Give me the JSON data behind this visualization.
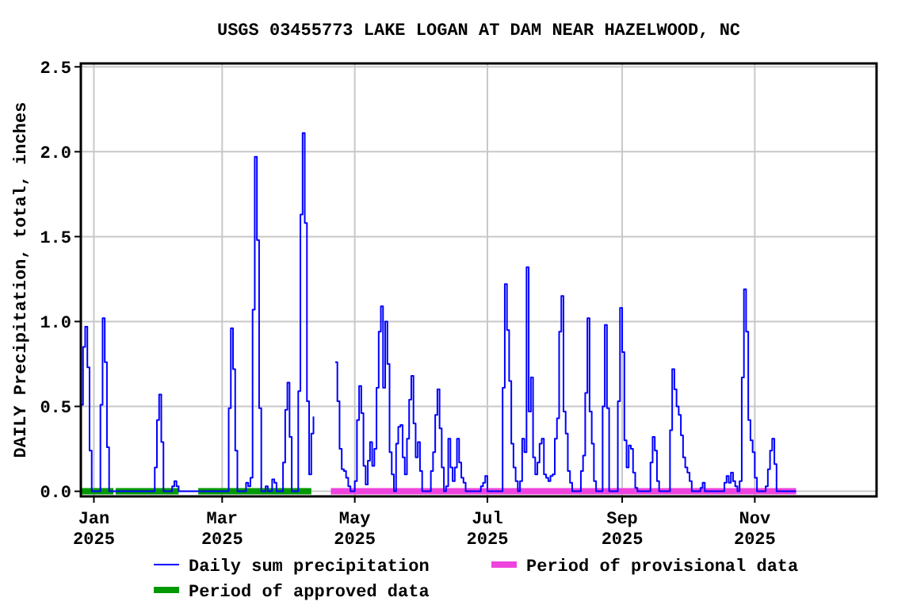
{
  "chart_data": {
    "type": "step",
    "title": "USGS 03455773 LAKE LOGAN AT DAM NEAR HAZELWOOD, NC",
    "ylabel": "DAILY Precipitation, total, inches",
    "xlim": [
      "2024-12-26",
      "2025-12-27"
    ],
    "ylim": [
      -0.03,
      2.52
    ],
    "xticks": [
      {
        "value": "2025-01-01",
        "label": "Jan 2025"
      },
      {
        "value": "2025-03-01",
        "label": "Mar 2025"
      },
      {
        "value": "2025-05-01",
        "label": "May 2025"
      },
      {
        "value": "2025-07-01",
        "label": "Jul 2025"
      },
      {
        "value": "2025-09-01",
        "label": "Sep 2025"
      },
      {
        "value": "2025-11-01",
        "label": "Nov 2025"
      }
    ],
    "yticks": [
      {
        "value": 0,
        "label": "0.0"
      },
      {
        "value": 0.5,
        "label": "0.5"
      },
      {
        "value": 1,
        "label": "1.0"
      },
      {
        "value": 1.5,
        "label": "1.5"
      },
      {
        "value": 2,
        "label": "2.0"
      },
      {
        "value": 2.5,
        "label": "2.5"
      }
    ],
    "grid": true,
    "legend": "bottom",
    "series": [
      {
        "name": "Daily sum precipitation",
        "color": "#0000ff",
        "x": [
          "2024-12-26",
          "2024-12-27",
          "2024-12-28",
          "2024-12-29",
          "2024-12-30",
          "2024-12-31",
          "2025-01-04",
          "2025-01-05",
          "2025-01-06",
          "2025-01-07",
          "2025-01-08",
          "2025-01-29",
          "2025-01-30",
          "2025-01-31",
          "2025-02-01",
          "2025-02-02",
          "2025-02-06",
          "2025-02-07",
          "2025-02-08",
          "2025-02-09",
          "2025-03-04",
          "2025-03-05",
          "2025-03-06",
          "2025-03-07",
          "2025-03-08",
          "2025-03-12",
          "2025-03-13",
          "2025-03-14",
          "2025-03-15",
          "2025-03-16",
          "2025-03-17",
          "2025-03-18",
          "2025-03-19",
          "2025-03-21",
          "2025-03-22",
          "2025-03-24",
          "2025-03-25",
          "2025-03-26",
          "2025-03-29",
          "2025-03-30",
          "2025-03-31",
          "2025-04-01",
          "2025-04-02",
          "2025-04-05",
          "2025-04-06",
          "2025-04-07",
          "2025-04-08",
          "2025-04-09",
          "2025-04-10",
          "2025-04-11",
          "2025-04-12",
          "2025-04-13",
          "2025-04-22",
          "2025-04-23",
          "2025-04-24",
          "2025-04-25",
          "2025-04-26",
          "2025-04-27",
          "2025-04-28",
          "2025-04-29",
          "2025-05-01",
          "2025-05-02",
          "2025-05-03",
          "2025-05-04",
          "2025-05-05",
          "2025-05-06",
          "2025-05-07",
          "2025-05-08",
          "2025-05-09",
          "2025-05-10",
          "2025-05-11",
          "2025-05-12",
          "2025-05-13",
          "2025-05-14",
          "2025-05-15",
          "2025-05-16",
          "2025-05-17",
          "2025-05-18",
          "2025-05-19",
          "2025-05-20",
          "2025-05-21",
          "2025-05-22",
          "2025-05-23",
          "2025-05-24",
          "2025-05-25",
          "2025-05-26",
          "2025-05-27",
          "2025-05-28",
          "2025-05-29",
          "2025-05-30",
          "2025-05-31",
          "2025-06-01",
          "2025-06-05",
          "2025-06-06",
          "2025-06-07",
          "2025-06-08",
          "2025-06-09",
          "2025-06-10",
          "2025-06-11",
          "2025-06-12",
          "2025-06-13",
          "2025-06-14",
          "2025-06-15",
          "2025-06-16",
          "2025-06-17",
          "2025-06-18",
          "2025-06-19",
          "2025-06-20",
          "2025-06-21",
          "2025-06-28",
          "2025-06-29",
          "2025-06-30",
          "2025-07-01",
          "2025-07-08",
          "2025-07-09",
          "2025-07-10",
          "2025-07-11",
          "2025-07-12",
          "2025-07-13",
          "2025-07-14",
          "2025-07-15",
          "2025-07-16",
          "2025-07-17",
          "2025-07-18",
          "2025-07-19",
          "2025-07-20",
          "2025-07-21",
          "2025-07-22",
          "2025-07-23",
          "2025-07-24",
          "2025-07-25",
          "2025-07-26",
          "2025-07-27",
          "2025-07-28",
          "2025-07-29",
          "2025-07-30",
          "2025-07-31",
          "2025-08-01",
          "2025-08-02",
          "2025-08-03",
          "2025-08-04",
          "2025-08-05",
          "2025-08-06",
          "2025-08-07",
          "2025-08-08",
          "2025-08-09",
          "2025-08-13",
          "2025-08-14",
          "2025-08-15",
          "2025-08-16",
          "2025-08-17",
          "2025-08-18",
          "2025-08-19",
          "2025-08-20",
          "2025-08-23",
          "2025-08-24",
          "2025-08-25",
          "2025-08-26",
          "2025-08-30",
          "2025-08-31",
          "2025-09-01",
          "2025-09-02",
          "2025-09-03",
          "2025-09-04",
          "2025-09-05",
          "2025-09-06",
          "2025-09-07",
          "2025-09-08",
          "2025-09-14",
          "2025-09-15",
          "2025-09-16",
          "2025-09-17",
          "2025-09-18",
          "2025-09-23",
          "2025-09-24",
          "2025-09-25",
          "2025-09-26",
          "2025-09-27",
          "2025-09-28",
          "2025-09-29",
          "2025-09-30",
          "2025-10-01",
          "2025-10-02",
          "2025-10-03",
          "2025-10-07",
          "2025-10-08",
          "2025-10-09",
          "2025-10-18",
          "2025-10-19",
          "2025-10-20",
          "2025-10-21",
          "2025-10-22",
          "2025-10-23",
          "2025-10-24",
          "2025-10-25",
          "2025-10-26",
          "2025-10-27",
          "2025-10-28",
          "2025-10-29",
          "2025-10-30",
          "2025-10-31",
          "2025-11-01",
          "2025-11-02",
          "2025-11-06",
          "2025-11-07",
          "2025-11-08",
          "2025-11-09",
          "2025-11-10",
          "2025-11-11",
          "2025-11-20"
        ],
        "values": [
          0.51,
          0.85,
          0.97,
          0.73,
          0.24,
          0,
          0.51,
          1.02,
          0.76,
          0.26,
          0,
          0.14,
          0.42,
          0.57,
          0.29,
          0,
          0.03,
          0.06,
          0.03,
          0,
          0.49,
          0.96,
          0.72,
          0.24,
          0,
          0.05,
          0.03,
          0.08,
          1.07,
          1.97,
          1.48,
          0.49,
          0,
          0.03,
          0,
          0.07,
          0.05,
          0,
          0.17,
          0.48,
          0.64,
          0.32,
          0,
          0.59,
          1.63,
          2.11,
          1.58,
          0.53,
          0.1,
          0.34,
          0.44,
          null,
          0.76,
          0.53,
          0.25,
          0.13,
          0.12,
          0.08,
          0.03,
          0,
          0.06,
          0.42,
          0.62,
          0.46,
          0.15,
          0.04,
          0.18,
          0.29,
          0.15,
          0.25,
          0.61,
          0.94,
          1.09,
          0.61,
          1.0,
          0.75,
          0.23,
          0.1,
          0,
          0.28,
          0.38,
          0.39,
          0.2,
          0.1,
          0.31,
          0.54,
          0.68,
          0.4,
          0.2,
          0.29,
          0.12,
          0,
          0.12,
          0.23,
          0.45,
          0.6,
          0.37,
          0.14,
          0,
          0.03,
          0.31,
          0.14,
          0.06,
          0.14,
          0.31,
          0.17,
          0.08,
          0.05,
          0,
          0.03,
          0.05,
          0.09,
          0,
          0.61,
          1.22,
          0.95,
          0.65,
          0.28,
          0.14,
          0.06,
          0,
          0.06,
          0.31,
          0.23,
          1.32,
          0.47,
          0.67,
          0.2,
          0.1,
          0.17,
          0.28,
          0.31,
          0.1,
          0.08,
          0.06,
          0.09,
          0.1,
          0.31,
          0.43,
          0.94,
          1.15,
          0.47,
          0.34,
          0.12,
          0.05,
          0,
          0.12,
          0.21,
          0.58,
          1.02,
          0.47,
          0.28,
          0.06,
          0,
          0.5,
          0.98,
          0.49,
          0,
          0.53,
          1.08,
          0.82,
          0.3,
          0.14,
          0.27,
          0.25,
          0.11,
          0.02,
          0,
          0.17,
          0.32,
          0.24,
          0.06,
          0,
          0.36,
          0.72,
          0.6,
          0.5,
          0.45,
          0.33,
          0.2,
          0.14,
          0.11,
          0.06,
          0,
          0.02,
          0.05,
          0,
          0.05,
          0.09,
          0.05,
          0.11,
          0.06,
          0.03,
          0,
          0.06,
          0.67,
          1.19,
          0.94,
          0.42,
          0.3,
          0.23,
          0.08,
          0,
          0.03,
          0.13,
          0.24,
          0.31,
          0.16,
          0,
          0
        ]
      },
      {
        "name": "Period of provisional data",
        "type": "line",
        "color": "#ee44dd",
        "x": [
          "2025-04-20",
          "2025-11-20"
        ],
        "values": [
          0,
          0
        ]
      },
      {
        "name": "Period of approved data",
        "type": "line",
        "color": "#009900",
        "x": [
          "2024-12-26",
          "2025-01-10",
          null,
          "2025-01-11",
          "2025-02-09",
          null,
          "2025-02-18",
          "2025-04-11"
        ],
        "values": [
          0,
          0,
          null,
          0,
          0,
          null,
          0,
          0
        ]
      }
    ]
  }
}
